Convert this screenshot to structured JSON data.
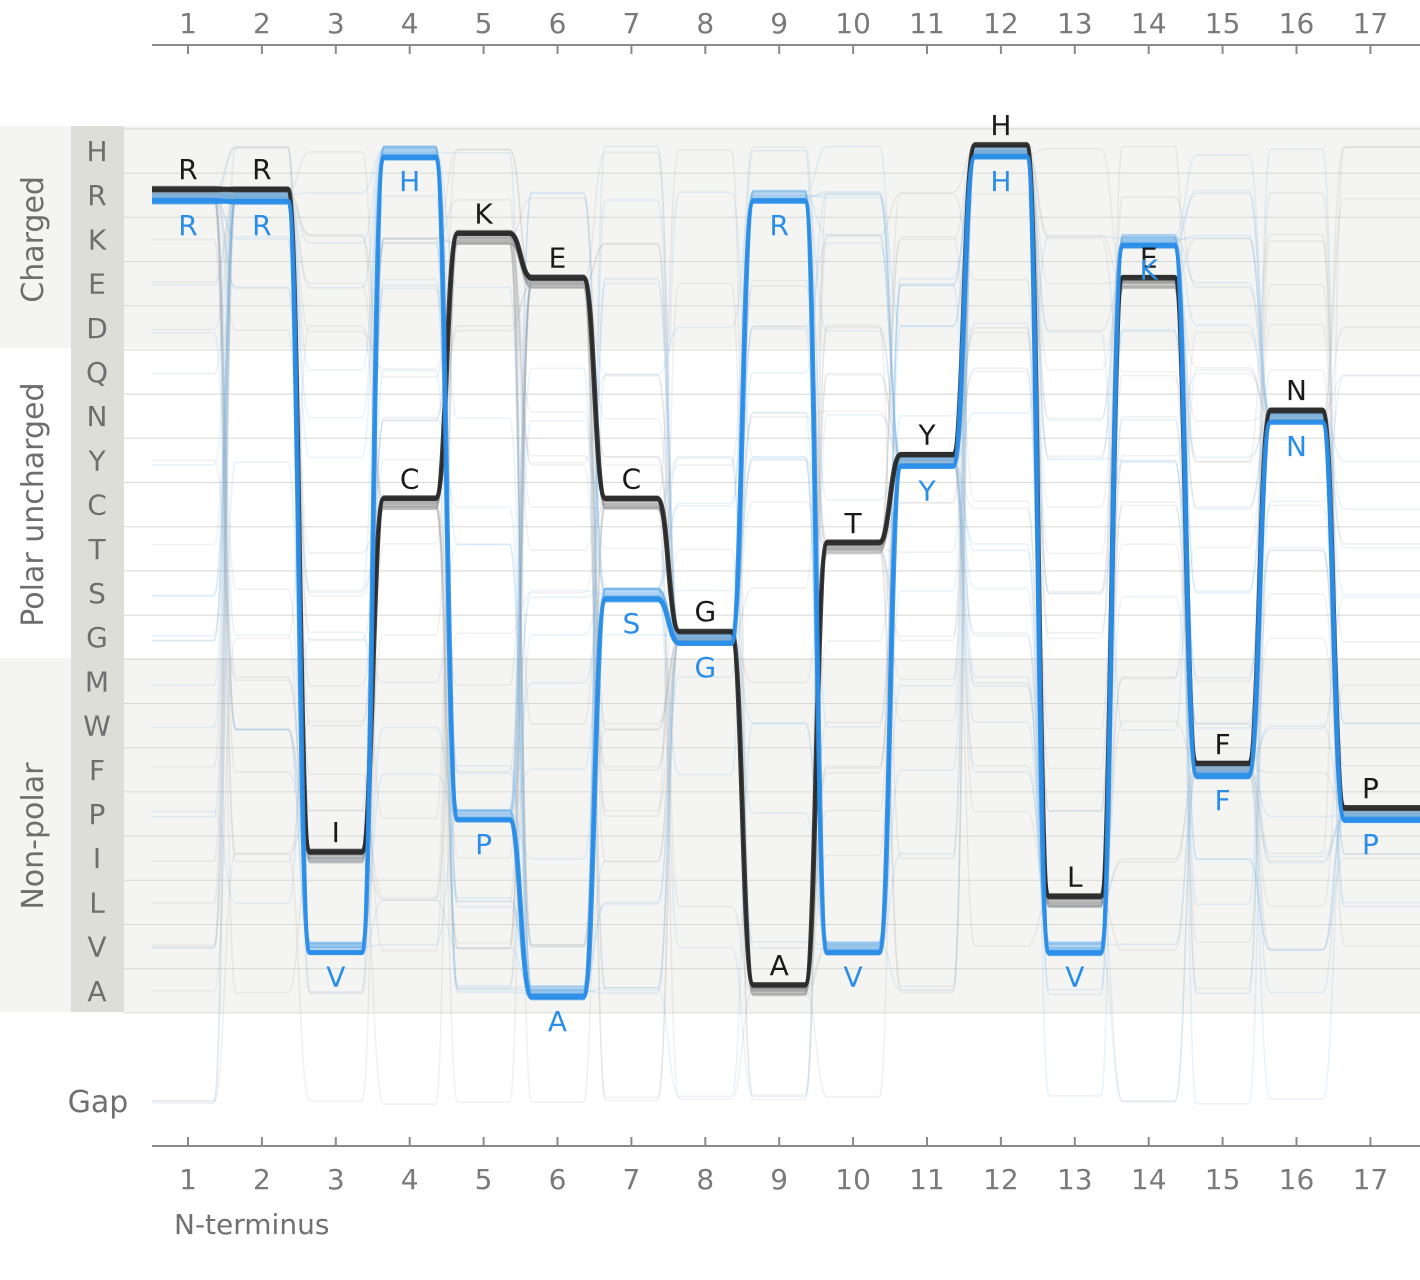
{
  "chart_data": {
    "type": "sequence-bundle",
    "positions": [
      "1",
      "2",
      "3",
      "4",
      "5",
      "6",
      "7",
      "8",
      "9",
      "10",
      "11",
      "12",
      "13",
      "14",
      "15",
      "16",
      "17"
    ],
    "x_label": "N-terminus",
    "residues": [
      "H",
      "R",
      "K",
      "E",
      "D",
      "Q",
      "N",
      "Y",
      "C",
      "T",
      "S",
      "G",
      "M",
      "W",
      "F",
      "P",
      "I",
      "L",
      "V",
      "A"
    ],
    "gap_label": "Gap",
    "groups": [
      {
        "name": "Charged",
        "rows": [
          "H",
          "R",
          "K",
          "E",
          "D"
        ]
      },
      {
        "name": "Polar uncharged",
        "rows": [
          "Q",
          "N",
          "Y",
          "C",
          "T",
          "S",
          "G"
        ]
      },
      {
        "name": "Non-polar",
        "rows": [
          "M",
          "W",
          "F",
          "P",
          "I",
          "L",
          "V",
          "A"
        ]
      }
    ],
    "series": [
      {
        "color": "#2b2b2b",
        "sequence": [
          "R",
          "R",
          "I",
          "C",
          "K",
          "E",
          "C",
          "G",
          "A",
          "T",
          "Y",
          "H",
          "L",
          "E",
          "F",
          "N",
          "P"
        ]
      },
      {
        "color": "#2a8ee8",
        "sequence": [
          "R",
          "R",
          "V",
          "H",
          "P",
          "A",
          "S",
          "G",
          "R",
          "V",
          "Y",
          "H",
          "V",
          "K",
          "F",
          "N",
          "P"
        ]
      }
    ],
    "colors": {
      "black": "#2b2b2b",
      "blue": "#2a8ee8",
      "background_band": "#f4f4f2",
      "label_band": "#deded9"
    }
  }
}
